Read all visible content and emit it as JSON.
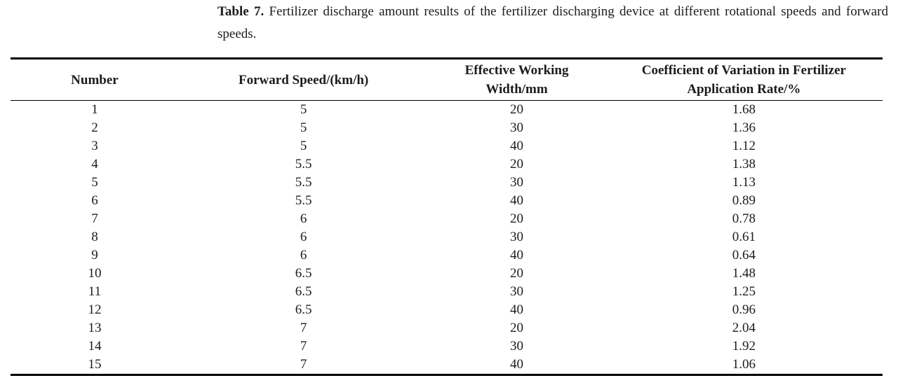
{
  "caption": {
    "label": "Table 7.",
    "text": "Fertilizer discharge amount results of the fertilizer discharging device at different rotational speeds and forward speeds."
  },
  "table": {
    "headers": [
      "Number",
      "Forward Speed/(km/h)",
      "Effective Working Width/mm",
      "Coefficient of Variation in Fertilizer Application Rate/%"
    ],
    "rows": [
      [
        "1",
        "5",
        "20",
        "1.68"
      ],
      [
        "2",
        "5",
        "30",
        "1.36"
      ],
      [
        "3",
        "5",
        "40",
        "1.12"
      ],
      [
        "4",
        "5.5",
        "20",
        "1.38"
      ],
      [
        "5",
        "5.5",
        "30",
        "1.13"
      ],
      [
        "6",
        "5.5",
        "40",
        "0.89"
      ],
      [
        "7",
        "6",
        "20",
        "0.78"
      ],
      [
        "8",
        "6",
        "30",
        "0.61"
      ],
      [
        "9",
        "6",
        "40",
        "0.64"
      ],
      [
        "10",
        "6.5",
        "20",
        "1.48"
      ],
      [
        "11",
        "6.5",
        "30",
        "1.25"
      ],
      [
        "12",
        "6.5",
        "40",
        "0.96"
      ],
      [
        "13",
        "7",
        "20",
        "2.04"
      ],
      [
        "14",
        "7",
        "30",
        "1.92"
      ],
      [
        "15",
        "7",
        "40",
        "1.06"
      ]
    ]
  },
  "colors": {
    "text": "#1c1c1c",
    "rule": "#000000",
    "background": "#ffffff"
  }
}
